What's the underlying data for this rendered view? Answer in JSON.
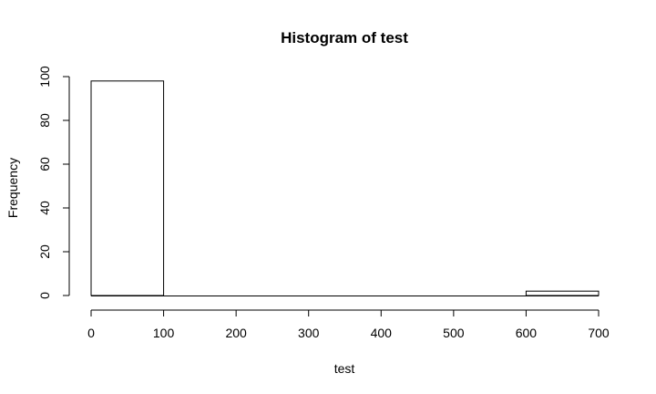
{
  "chart_data": {
    "type": "bar",
    "title": "Histogram of test",
    "xlabel": "test",
    "ylabel": "Frequency",
    "bins": [
      {
        "x0": 0,
        "x1": 100,
        "count": 98
      },
      {
        "x0": 100,
        "x1": 200,
        "count": 0
      },
      {
        "x0": 200,
        "x1": 300,
        "count": 0
      },
      {
        "x0": 300,
        "x1": 400,
        "count": 0
      },
      {
        "x0": 400,
        "x1": 500,
        "count": 0
      },
      {
        "x0": 500,
        "x1": 600,
        "count": 0
      },
      {
        "x0": 600,
        "x1": 700,
        "count": 2
      }
    ],
    "xlim": [
      0,
      700
    ],
    "ylim": [
      0,
      100
    ],
    "xticks": [
      "0",
      "100",
      "200",
      "300",
      "400",
      "500",
      "600",
      "700"
    ],
    "yticks": [
      "0",
      "20",
      "40",
      "60",
      "80",
      "100"
    ],
    "grid": false,
    "legend": "none",
    "bar_fill": "#ffffff",
    "bar_stroke": "#000000"
  }
}
